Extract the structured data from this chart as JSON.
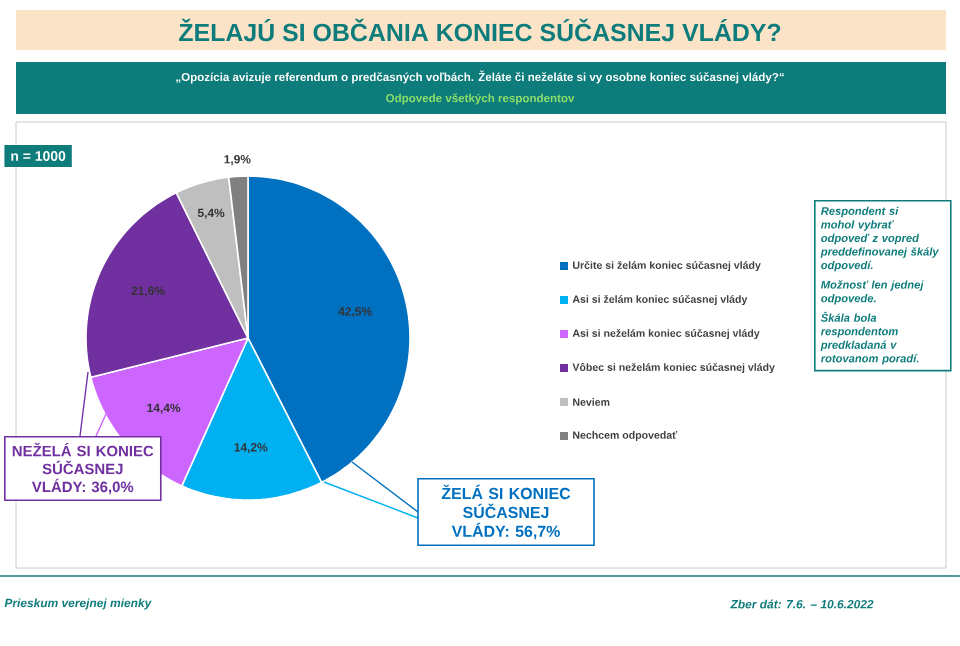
{
  "chart_data": {
    "type": "pie",
    "title": "ŽELAJÚ SI OBČANIA KONIEC SÚČASNEJ VLÁDY?",
    "subtitle": "„Opozícia avizuje referendum o predčasných voľbách. Želáte či neželáte si vy osobne koniec súčasnej vlády?“",
    "categories": [
      "Určite si želám koniec súčasnej vlády",
      "Asi si želám koniec súčasnej vlády",
      "Asi si neželám koniec súčasnej vlády",
      "Vôbec si neželám koniec súčasnej vlády",
      "Neviem",
      "Nechcem odpovedať"
    ],
    "values": [
      42.5,
      14.2,
      14.4,
      21.6,
      5.4,
      1.9
    ],
    "colors": [
      "#0070c0",
      "#00b0f0",
      "#cc66ff",
      "#7030a0",
      "#bfbfbf",
      "#808080"
    ],
    "value_labels": [
      "42,5%",
      "14,2%",
      "14,4%",
      "21,6%",
      "5,4%",
      "1,9%"
    ],
    "legend": "right",
    "annotations": [
      "Odpovede všetkých respondentov",
      "n = 1000",
      "ŽELÁ SI KONIEC SÚČASNEJ VLÁDY: 56,7%",
      "NEŽELÁ SI KONIEC SÚČASNEJ VLÁDY: 36,0%",
      "Respondent si mohol vybrať odpoveď z vopred preddefinovanej škály odpovedí.",
      "Možnosť len jednej odpovede.",
      "Škála bola respondentom predkladaná v rotovanom poradí.",
      "Prieskum verejnej mienky",
      "Zber dát: 7.6. – 10.6.2022"
    ]
  }
}
